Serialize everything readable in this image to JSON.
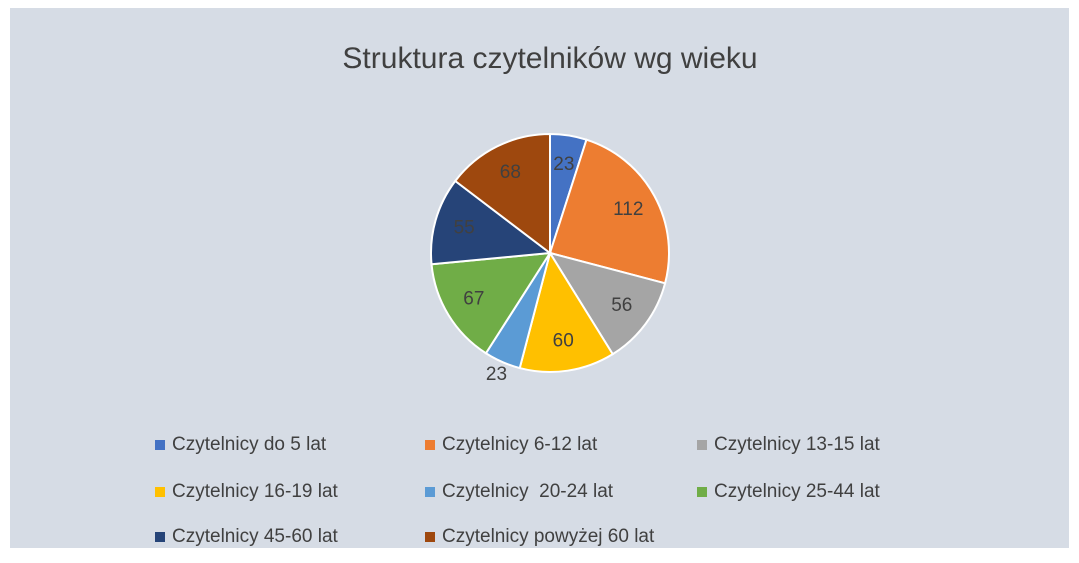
{
  "chart_data": {
    "type": "pie",
    "title": "Struktura czytelników wg wieku",
    "categories": [
      "Czytelnicy do 5 lat",
      "Czytelnicy 6-12 lat",
      "Czytelnicy 13-15 lat",
      "Czytelnicy 16-19 lat",
      "Czytelnicy  20-24 lat",
      "Czytelnicy 25-44 lat",
      "Czytelnicy 45-60 lat",
      "Czytelnicy powyżej 60 lat"
    ],
    "values": [
      23,
      112,
      56,
      60,
      23,
      67,
      55,
      68
    ],
    "colors": [
      "#4472c4",
      "#ed7d31",
      "#a5a5a5",
      "#ffc000",
      "#5b9bd5",
      "#70ad47",
      "#264478",
      "#9e480e"
    ],
    "legend": "bottom"
  }
}
